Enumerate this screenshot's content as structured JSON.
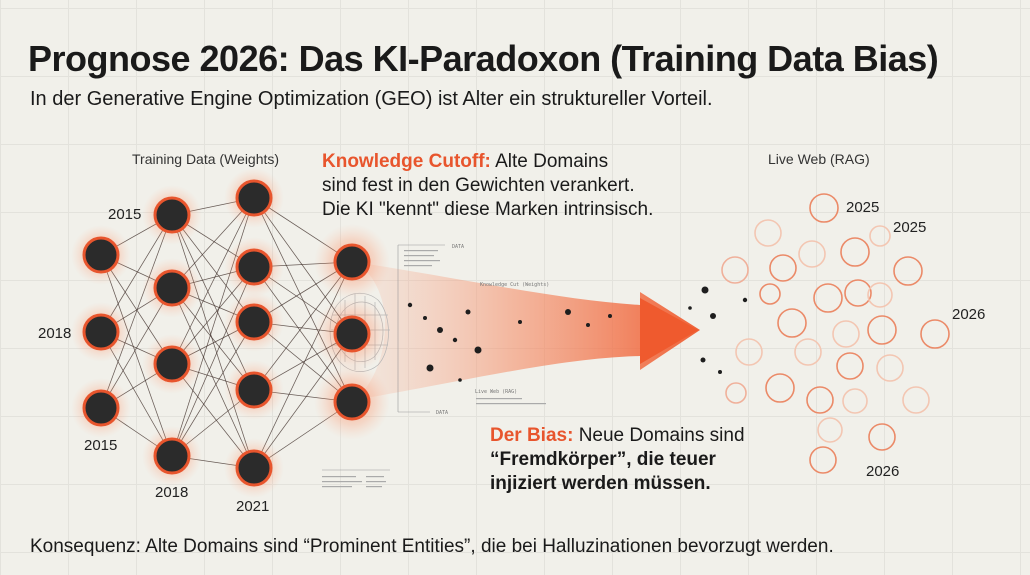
{
  "title": "Prognose 2026: Das KI-Paradoxon (Training Data Bias)",
  "subtitle": "In der Generative Engine Optimization (GEO) ist Alter ein struktureller Vorteil.",
  "footer": "Konsequenz: Alte Domains sind “Prominent Entities”, die bei Halluzinationen bevorzugt werden.",
  "training_panel": {
    "label": "Training Data (Weights)",
    "node_years": [
      {
        "node": 0,
        "year": "2015"
      },
      {
        "node": 1,
        "year": "2018"
      },
      {
        "node": 2,
        "year": "2015"
      },
      {
        "node": 6,
        "year": "2018"
      },
      {
        "node": 10,
        "year": "2021"
      }
    ]
  },
  "live_panel": {
    "label": "Live Web (RAG)",
    "years": [
      "2025",
      "2025",
      "2026",
      "2026"
    ]
  },
  "callout_cutoff": {
    "highlight": "Knowledge Cutoff:",
    "lines": [
      "Alte Domains",
      "sind fest in den Gewichten verankert.",
      "Die KI \"kennt\" diese Marken intrinsisch."
    ]
  },
  "callout_bias": {
    "highlight": "Der Bias:",
    "lines": [
      "Neue Domains sind",
      "“Fremdkörper”, die teuer",
      "injiziert werden müssen."
    ]
  },
  "tiny_labels": {
    "data_top": "DATA",
    "data_bottom": "DATA",
    "cutoff_tag": "Knowledge Cut (Weights)",
    "web_tag": "Live Web (RAG)"
  },
  "colors": {
    "accent": "#e8552d",
    "node_fill": "#2b2b2b",
    "background": "#f1f0ea"
  }
}
